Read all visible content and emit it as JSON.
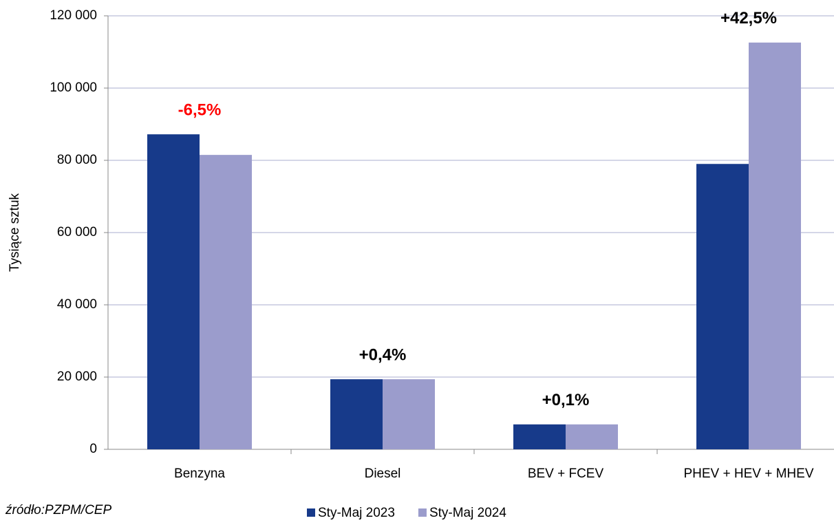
{
  "chart_data": {
    "type": "bar",
    "y_label": "Tysiące sztuk",
    "source": "źródło:PZPM/CEP",
    "categories": [
      "Benzyna",
      "Diesel",
      "BEV + FCEV",
      "PHEV + HEV + MHEV"
    ],
    "series": [
      {
        "name": "Sty-Maj 2023",
        "color": "#173a8a",
        "values": [
          87200,
          19400,
          6900,
          79000
        ]
      },
      {
        "name": "Sty-Maj 2024",
        "color": "#9b9ccc",
        "values": [
          81500,
          19400,
          6900,
          112600
        ]
      }
    ],
    "annotations": [
      {
        "text": "-6,5%",
        "color": "#ff0000"
      },
      {
        "text": "+0,4%",
        "color": "#000000"
      },
      {
        "text": "+0,1%",
        "color": "#000000"
      },
      {
        "text": "+42,5%",
        "color": "#000000"
      }
    ],
    "ylim": [
      0,
      120000
    ],
    "yticks": [
      0,
      {
        "value": 20000,
        "label": "20 000"
      },
      {
        "value": 40000,
        "label": "40 000"
      },
      {
        "value": 60000,
        "label": "60 000"
      },
      {
        "value": 80000,
        "label": "80 000"
      },
      {
        "value": 100000,
        "label": "100 000"
      },
      {
        "value": 120000,
        "label": "120 000"
      }
    ],
    "grid": true,
    "legend": "bottom"
  }
}
